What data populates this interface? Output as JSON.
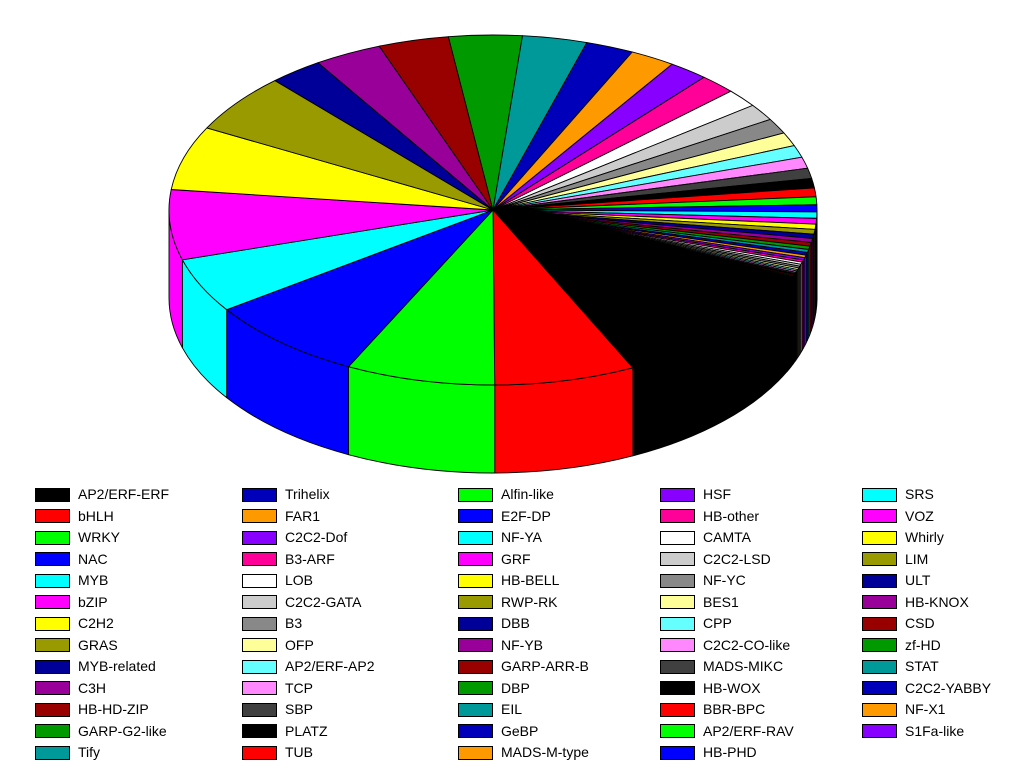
{
  "figure": {
    "background": "#FFFFFF",
    "description": "3D exploded-style pie chart of plant transcription factor family proportions, with a 13-row, 5-column color legend below"
  },
  "chart_data": {
    "type": "pie",
    "projection": "3d",
    "title": "",
    "grid": false,
    "legend_position": "bottom",
    "legend_columns": 5,
    "legend_column_sizes": [
      13,
      13,
      13,
      13,
      12
    ],
    "start_angle_deg_clockwise_from_east": 25,
    "value_unit": "percent_share_estimated_from_slice_angles",
    "palette_cycle": [
      "#000000",
      "#FF0000",
      "#00FF00",
      "#0000FF",
      "#00FFFF",
      "#FF00FF",
      "#FFFF00",
      "#999900",
      "#000099",
      "#990099",
      "#990000",
      "#009900",
      "#009999",
      "#0000BB",
      "#FF9900",
      "#8800FF",
      "#FF0099",
      "#FFFFFF",
      "#CCCCCC",
      "#888888",
      "#FFFF99",
      "#66FFFF",
      "#FF88FF",
      "#404040"
    ],
    "slices": [
      {
        "label": "AP2/ERF-ERF",
        "color": "#000000",
        "value": 10.95
      },
      {
        "label": "bHLH",
        "color": "#FF0000",
        "value": 7.02
      },
      {
        "label": "WRKY",
        "color": "#00FF00",
        "value": 7.44
      },
      {
        "label": "NAC",
        "color": "#0000FF",
        "value": 8.0
      },
      {
        "label": "MYB",
        "color": "#00FFFF",
        "value": 5.05
      },
      {
        "label": "bZIP",
        "color": "#FF00FF",
        "value": 6.46
      },
      {
        "label": "C2H2",
        "color": "#FFFF00",
        "value": 5.9
      },
      {
        "label": "GRAS",
        "color": "#999900",
        "value": 5.48
      },
      {
        "label": "MYB-related",
        "color": "#000099",
        "value": 2.67
      },
      {
        "label": "C3H",
        "color": "#990099",
        "value": 3.37
      },
      {
        "label": "HB-HD-ZIP",
        "color": "#990000",
        "value": 3.51
      },
      {
        "label": "GARP-G2-like",
        "color": "#009900",
        "value": 3.65
      },
      {
        "label": "Tify",
        "color": "#009999",
        "value": 3.23
      },
      {
        "label": "Trihelix",
        "color": "#0000BB",
        "value": 2.39
      },
      {
        "label": "FAR1",
        "color": "#FF9900",
        "value": 2.25
      },
      {
        "label": "C2C2-Dof",
        "color": "#8800FF",
        "value": 1.97
      },
      {
        "label": "B3-ARF",
        "color": "#FF0099",
        "value": 1.83
      },
      {
        "label": "LOB",
        "color": "#FFFFFF",
        "value": 1.68
      },
      {
        "label": "C2C2-GATA",
        "color": "#CCCCCC",
        "value": 1.54
      },
      {
        "label": "B3",
        "color": "#888888",
        "value": 1.4
      },
      {
        "label": "OFP",
        "color": "#FFFF99",
        "value": 1.26
      },
      {
        "label": "AP2/ERF-AP2",
        "color": "#66FFFF",
        "value": 1.12
      },
      {
        "label": "TCP",
        "color": "#FF88FF",
        "value": 1.04
      },
      {
        "label": "SBP",
        "color": "#404040",
        "value": 0.95
      },
      {
        "label": "PLATZ",
        "color": "#000000",
        "value": 0.87
      },
      {
        "label": "TUB",
        "color": "#FF0000",
        "value": 0.81
      },
      {
        "label": "Alfin-like",
        "color": "#00FF00",
        "value": 0.73
      },
      {
        "label": "E2F-DP",
        "color": "#0000FF",
        "value": 0.65
      },
      {
        "label": "NF-YA",
        "color": "#00FFFF",
        "value": 0.59
      },
      {
        "label": "GRF",
        "color": "#FF00FF",
        "value": 0.53
      },
      {
        "label": "HB-BELL",
        "color": "#FFFF00",
        "value": 0.48
      },
      {
        "label": "RWP-RK",
        "color": "#999900",
        "value": 0.44
      },
      {
        "label": "DBB",
        "color": "#000099",
        "value": 0.39
      },
      {
        "label": "NF-YB",
        "color": "#990099",
        "value": 0.37
      },
      {
        "label": "GARP-ARR-B",
        "color": "#990000",
        "value": 0.34
      },
      {
        "label": "DBP",
        "color": "#009900",
        "value": 0.31
      },
      {
        "label": "EIL",
        "color": "#009999",
        "value": 0.28
      },
      {
        "label": "GeBP",
        "color": "#0000BB",
        "value": 0.25
      },
      {
        "label": "MADS-M-type",
        "color": "#FF9900",
        "value": 0.24
      },
      {
        "label": "HSF",
        "color": "#8800FF",
        "value": 0.22
      },
      {
        "label": "HB-other",
        "color": "#FF0099",
        "value": 0.21
      },
      {
        "label": "CAMTA",
        "color": "#FFFFFF",
        "value": 0.2
      },
      {
        "label": "C2C2-LSD",
        "color": "#CCCCCC",
        "value": 0.18
      },
      {
        "label": "NF-YC",
        "color": "#888888",
        "value": 0.17
      },
      {
        "label": "BES1",
        "color": "#FFFF99",
        "value": 0.15
      },
      {
        "label": "CPP",
        "color": "#66FFFF",
        "value": 0.14
      },
      {
        "label": "C2C2-CO-like",
        "color": "#FF88FF",
        "value": 0.13
      },
      {
        "label": "MADS-MIKC",
        "color": "#404040",
        "value": 0.12
      },
      {
        "label": "HB-WOX",
        "color": "#000000",
        "value": 0.107
      },
      {
        "label": "BBR-BPC",
        "color": "#FF0000",
        "value": 0.098
      },
      {
        "label": "AP2/ERF-RAV",
        "color": "#00FF00",
        "value": 0.09
      },
      {
        "label": "HB-PHD",
        "color": "#0000FF",
        "value": 0.084
      },
      {
        "label": "SRS",
        "color": "#00FFFF",
        "value": 0.079
      },
      {
        "label": "VOZ",
        "color": "#FF00FF",
        "value": 0.073
      },
      {
        "label": "Whirly",
        "color": "#FFFF00",
        "value": 0.067
      },
      {
        "label": "LIM",
        "color": "#999900",
        "value": 0.062
      },
      {
        "label": "ULT",
        "color": "#000099",
        "value": 0.056
      },
      {
        "label": "HB-KNOX",
        "color": "#990099",
        "value": 0.053
      },
      {
        "label": "CSD",
        "color": "#990000",
        "value": 0.051
      },
      {
        "label": "zf-HD",
        "color": "#009900",
        "value": 0.048
      },
      {
        "label": "STAT",
        "color": "#009999",
        "value": 0.045
      },
      {
        "label": "C2C2-YABBY",
        "color": "#0000BB",
        "value": 0.042
      },
      {
        "label": "NF-X1",
        "color": "#FF9900",
        "value": 0.039
      },
      {
        "label": "S1Fa-like",
        "color": "#8800FF",
        "value": 0.037
      }
    ]
  }
}
